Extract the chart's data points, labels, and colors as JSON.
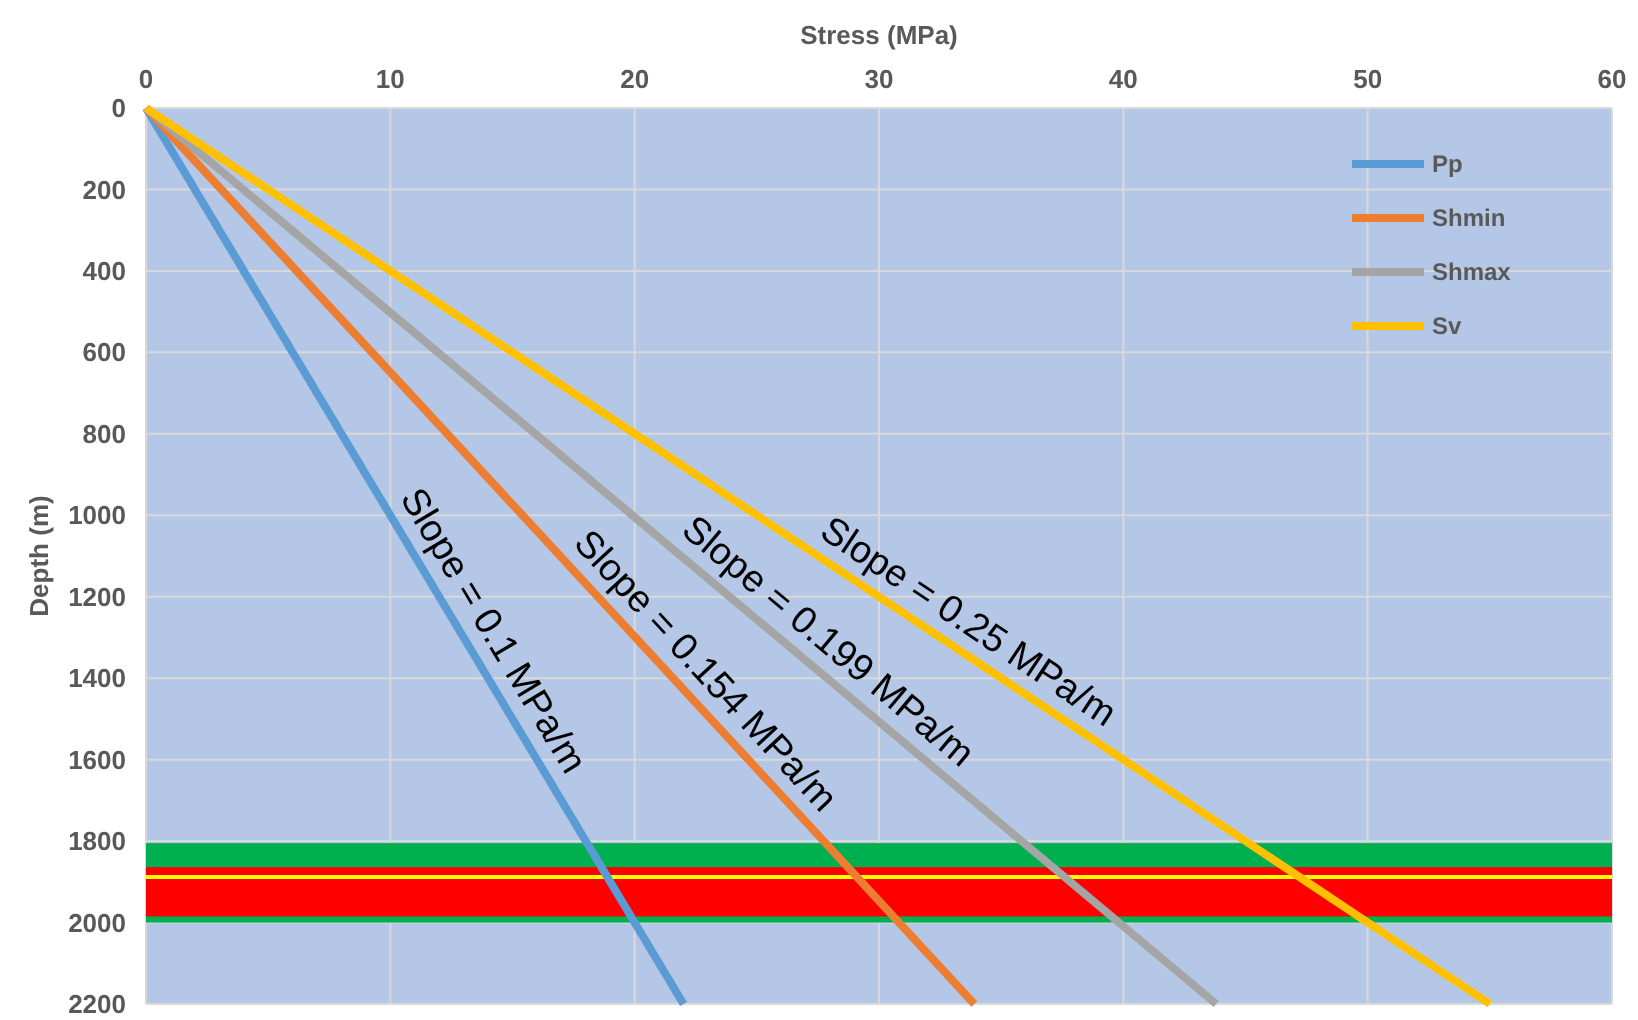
{
  "chart_data": {
    "type": "line",
    "xlabel": "Stress (MPa)",
    "ylabel": "Depth (m)",
    "xlim": [
      0,
      60
    ],
    "xticks": [
      0,
      10,
      20,
      30,
      40,
      50,
      60
    ],
    "ylim": [
      2200,
      0
    ],
    "yticks": [
      0,
      200,
      400,
      600,
      800,
      1000,
      1200,
      1400,
      1600,
      1800,
      2000,
      2200
    ],
    "grid": true,
    "legend": "top right",
    "series": [
      {
        "name": "Pp",
        "color": "#5b9bd5",
        "x": [
          0,
          22
        ],
        "values": [
          0,
          2200
        ]
      },
      {
        "name": "Shmin",
        "color": "#ed7d31",
        "x": [
          0,
          33.9
        ],
        "values": [
          0,
          2200
        ]
      },
      {
        "name": "Shmax",
        "color": "#a5a5a5",
        "x": [
          0,
          43.8
        ],
        "values": [
          0,
          2200
        ]
      },
      {
        "name": "Sv",
        "color": "#ffc000",
        "x": [
          0,
          55
        ],
        "values": [
          0,
          2200
        ]
      }
    ],
    "bands": [
      {
        "axis": "y",
        "from": 1805,
        "to": 2000,
        "color": "#00b050"
      },
      {
        "axis": "y",
        "from": 1864,
        "to": 1985,
        "color": "#ff0000"
      }
    ],
    "ref_lines": [
      {
        "axis": "y",
        "value": 1888,
        "color": "#ffff00"
      }
    ],
    "annotations": [
      "Slope = 0.1 MPa/m",
      "Slope = 0.154 MPa/m",
      "Slope = 0.199 MPa/m",
      "Slope = 0.25 MPa/m"
    ]
  }
}
